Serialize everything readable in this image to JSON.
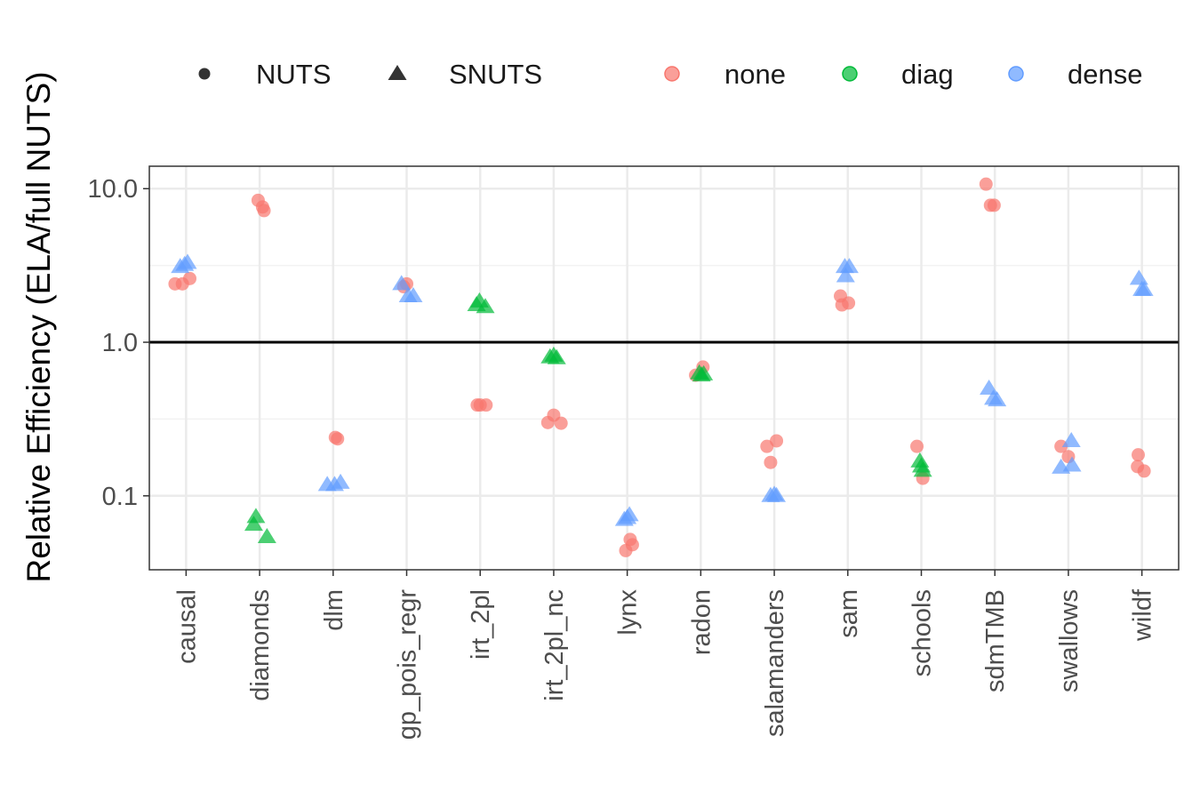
{
  "chart_data": {
    "type": "scatter",
    "title": "",
    "xlabel": "",
    "ylabel": "Relative Efficiency (ELA/full NUTS)",
    "y_scale": "log10",
    "ylim": [
      0.033,
      14
    ],
    "y_ticks": [
      {
        "value": 0.1,
        "label": "0.1"
      },
      {
        "value": 1.0,
        "label": "1.0"
      },
      {
        "value": 10.0,
        "label": "10.0"
      }
    ],
    "reference_line": 1.0,
    "grid": true,
    "legend_position": "top",
    "shape_legend": [
      {
        "key": "NUTS",
        "label": "NUTS",
        "shape": "circle"
      },
      {
        "key": "SNUTS",
        "label": "SNUTS",
        "shape": "triangle"
      }
    ],
    "color_legend": [
      {
        "key": "none",
        "label": "none",
        "color": "#F8766D"
      },
      {
        "key": "diag",
        "label": "diag",
        "color": "#00BA38"
      },
      {
        "key": "dense",
        "label": "dense",
        "color": "#619CFF"
      }
    ],
    "categories": [
      "causal",
      "diamonds",
      "dlm",
      "gp_pois_regr",
      "irt_2pl",
      "irt_2pl_nc",
      "lynx",
      "radon",
      "salamanders",
      "sam",
      "schools",
      "sdmTMB",
      "swallows",
      "wildf"
    ],
    "points": [
      {
        "category": "causal",
        "x_jitter": -0.15,
        "y": 2.4,
        "method": "NUTS",
        "metric": "none"
      },
      {
        "category": "causal",
        "x_jitter": -0.05,
        "y": 2.4,
        "method": "NUTS",
        "metric": "none"
      },
      {
        "category": "causal",
        "x_jitter": 0.05,
        "y": 2.6,
        "method": "NUTS",
        "metric": "none"
      },
      {
        "category": "causal",
        "x_jitter": -0.08,
        "y": 3.1,
        "method": "SNUTS",
        "metric": "dense"
      },
      {
        "category": "causal",
        "x_jitter": -0.02,
        "y": 3.2,
        "method": "SNUTS",
        "metric": "dense"
      },
      {
        "category": "causal",
        "x_jitter": 0.02,
        "y": 3.3,
        "method": "SNUTS",
        "metric": "dense"
      },
      {
        "category": "diamonds",
        "x_jitter": -0.02,
        "y": 8.4,
        "method": "NUTS",
        "metric": "none"
      },
      {
        "category": "diamonds",
        "x_jitter": 0.04,
        "y": 7.6,
        "method": "NUTS",
        "metric": "none"
      },
      {
        "category": "diamonds",
        "x_jitter": 0.06,
        "y": 7.2,
        "method": "NUTS",
        "metric": "none"
      },
      {
        "category": "diamonds",
        "x_jitter": -0.08,
        "y": 0.065,
        "method": "SNUTS",
        "metric": "diag"
      },
      {
        "category": "diamonds",
        "x_jitter": -0.05,
        "y": 0.073,
        "method": "SNUTS",
        "metric": "diag"
      },
      {
        "category": "diamonds",
        "x_jitter": 0.1,
        "y": 0.054,
        "method": "SNUTS",
        "metric": "diag"
      },
      {
        "category": "dlm",
        "x_jitter": 0.03,
        "y": 0.24,
        "method": "NUTS",
        "metric": "none"
      },
      {
        "category": "dlm",
        "x_jitter": 0.06,
        "y": 0.235,
        "method": "NUTS",
        "metric": "none"
      },
      {
        "category": "dlm",
        "x_jitter": -0.08,
        "y": 0.118,
        "method": "SNUTS",
        "metric": "dense"
      },
      {
        "category": "dlm",
        "x_jitter": 0.02,
        "y": 0.118,
        "method": "SNUTS",
        "metric": "dense"
      },
      {
        "category": "dlm",
        "x_jitter": 0.1,
        "y": 0.122,
        "method": "SNUTS",
        "metric": "dense"
      },
      {
        "category": "gp_pois_regr",
        "x_jitter": -0.04,
        "y": 2.3,
        "method": "NUTS",
        "metric": "none"
      },
      {
        "category": "gp_pois_regr",
        "x_jitter": 0.0,
        "y": 2.4,
        "method": "NUTS",
        "metric": "none"
      },
      {
        "category": "gp_pois_regr",
        "x_jitter": -0.07,
        "y": 2.4,
        "method": "SNUTS",
        "metric": "dense"
      },
      {
        "category": "gp_pois_regr",
        "x_jitter": 0.02,
        "y": 2.0,
        "method": "SNUTS",
        "metric": "dense"
      },
      {
        "category": "gp_pois_regr",
        "x_jitter": 0.09,
        "y": 2.0,
        "method": "SNUTS",
        "metric": "dense"
      },
      {
        "category": "irt_2pl",
        "x_jitter": -0.04,
        "y": 0.39,
        "method": "NUTS",
        "metric": "none"
      },
      {
        "category": "irt_2pl",
        "x_jitter": 0.0,
        "y": 0.39,
        "method": "NUTS",
        "metric": "none"
      },
      {
        "category": "irt_2pl",
        "x_jitter": 0.08,
        "y": 0.39,
        "method": "NUTS",
        "metric": "none"
      },
      {
        "category": "irt_2pl",
        "x_jitter": -0.05,
        "y": 1.75,
        "method": "SNUTS",
        "metric": "diag"
      },
      {
        "category": "irt_2pl",
        "x_jitter": -0.01,
        "y": 1.85,
        "method": "SNUTS",
        "metric": "diag"
      },
      {
        "category": "irt_2pl",
        "x_jitter": 0.07,
        "y": 1.7,
        "method": "SNUTS",
        "metric": "diag"
      },
      {
        "category": "irt_2pl_nc",
        "x_jitter": -0.08,
        "y": 0.3,
        "method": "NUTS",
        "metric": "none"
      },
      {
        "category": "irt_2pl_nc",
        "x_jitter": 0.0,
        "y": 0.335,
        "method": "NUTS",
        "metric": "none"
      },
      {
        "category": "irt_2pl_nc",
        "x_jitter": 0.1,
        "y": 0.297,
        "method": "NUTS",
        "metric": "none"
      },
      {
        "category": "irt_2pl_nc",
        "x_jitter": -0.05,
        "y": 0.8,
        "method": "SNUTS",
        "metric": "diag"
      },
      {
        "category": "irt_2pl_nc",
        "x_jitter": 0.0,
        "y": 0.82,
        "method": "SNUTS",
        "metric": "diag"
      },
      {
        "category": "irt_2pl_nc",
        "x_jitter": 0.04,
        "y": 0.79,
        "method": "SNUTS",
        "metric": "diag"
      },
      {
        "category": "lynx",
        "x_jitter": -0.02,
        "y": 0.044,
        "method": "NUTS",
        "metric": "none"
      },
      {
        "category": "lynx",
        "x_jitter": 0.04,
        "y": 0.052,
        "method": "NUTS",
        "metric": "none"
      },
      {
        "category": "lynx",
        "x_jitter": 0.07,
        "y": 0.048,
        "method": "NUTS",
        "metric": "none"
      },
      {
        "category": "lynx",
        "x_jitter": -0.04,
        "y": 0.07,
        "method": "SNUTS",
        "metric": "dense"
      },
      {
        "category": "lynx",
        "x_jitter": 0.0,
        "y": 0.072,
        "method": "SNUTS",
        "metric": "dense"
      },
      {
        "category": "lynx",
        "x_jitter": 0.03,
        "y": 0.075,
        "method": "SNUTS",
        "metric": "dense"
      },
      {
        "category": "radon",
        "x_jitter": -0.07,
        "y": 0.61,
        "method": "NUTS",
        "metric": "none"
      },
      {
        "category": "radon",
        "x_jitter": 0.03,
        "y": 0.69,
        "method": "NUTS",
        "metric": "none"
      },
      {
        "category": "radon",
        "x_jitter": -0.02,
        "y": 0.63,
        "method": "SNUTS",
        "metric": "diag"
      },
      {
        "category": "radon",
        "x_jitter": 0.01,
        "y": 0.61,
        "method": "SNUTS",
        "metric": "diag"
      },
      {
        "category": "radon",
        "x_jitter": 0.04,
        "y": 0.62,
        "method": "SNUTS",
        "metric": "diag"
      },
      {
        "category": "salamanders",
        "x_jitter": -0.1,
        "y": 0.21,
        "method": "NUTS",
        "metric": "none"
      },
      {
        "category": "salamanders",
        "x_jitter": -0.05,
        "y": 0.165,
        "method": "NUTS",
        "metric": "none"
      },
      {
        "category": "salamanders",
        "x_jitter": 0.03,
        "y": 0.228,
        "method": "NUTS",
        "metric": "none"
      },
      {
        "category": "salamanders",
        "x_jitter": -0.05,
        "y": 0.1,
        "method": "SNUTS",
        "metric": "dense"
      },
      {
        "category": "salamanders",
        "x_jitter": 0.0,
        "y": 0.102,
        "method": "SNUTS",
        "metric": "dense"
      },
      {
        "category": "salamanders",
        "x_jitter": 0.03,
        "y": 0.1,
        "method": "SNUTS",
        "metric": "dense"
      },
      {
        "category": "sam",
        "x_jitter": -0.1,
        "y": 2.0,
        "method": "NUTS",
        "metric": "none"
      },
      {
        "category": "sam",
        "x_jitter": -0.08,
        "y": 1.75,
        "method": "NUTS",
        "metric": "none"
      },
      {
        "category": "sam",
        "x_jitter": 0.01,
        "y": 1.8,
        "method": "NUTS",
        "metric": "none"
      },
      {
        "category": "sam",
        "x_jitter": -0.03,
        "y": 2.7,
        "method": "SNUTS",
        "metric": "dense"
      },
      {
        "category": "sam",
        "x_jitter": -0.04,
        "y": 3.1,
        "method": "SNUTS",
        "metric": "dense"
      },
      {
        "category": "sam",
        "x_jitter": 0.02,
        "y": 3.1,
        "method": "SNUTS",
        "metric": "dense"
      },
      {
        "category": "schools",
        "x_jitter": -0.06,
        "y": 0.21,
        "method": "NUTS",
        "metric": "none"
      },
      {
        "category": "schools",
        "x_jitter": 0.02,
        "y": 0.13,
        "method": "NUTS",
        "metric": "none"
      },
      {
        "category": "schools",
        "x_jitter": -0.02,
        "y": 0.168,
        "method": "SNUTS",
        "metric": "diag"
      },
      {
        "category": "schools",
        "x_jitter": 0.0,
        "y": 0.156,
        "method": "SNUTS",
        "metric": "diag"
      },
      {
        "category": "schools",
        "x_jitter": 0.02,
        "y": 0.146,
        "method": "SNUTS",
        "metric": "diag"
      },
      {
        "category": "sdmTMB",
        "x_jitter": -0.12,
        "y": 10.7,
        "method": "NUTS",
        "metric": "none"
      },
      {
        "category": "sdmTMB",
        "x_jitter": -0.06,
        "y": 7.8,
        "method": "NUTS",
        "metric": "none"
      },
      {
        "category": "sdmTMB",
        "x_jitter": -0.01,
        "y": 7.8,
        "method": "NUTS",
        "metric": "none"
      },
      {
        "category": "sdmTMB",
        "x_jitter": -0.08,
        "y": 0.5,
        "method": "SNUTS",
        "metric": "dense"
      },
      {
        "category": "sdmTMB",
        "x_jitter": -0.02,
        "y": 0.43,
        "method": "SNUTS",
        "metric": "dense"
      },
      {
        "category": "sdmTMB",
        "x_jitter": 0.03,
        "y": 0.42,
        "method": "SNUTS",
        "metric": "dense"
      },
      {
        "category": "swallows",
        "x_jitter": -0.1,
        "y": 0.21,
        "method": "NUTS",
        "metric": "none"
      },
      {
        "category": "swallows",
        "x_jitter": 0.0,
        "y": 0.18,
        "method": "NUTS",
        "metric": "none"
      },
      {
        "category": "swallows",
        "x_jitter": -0.1,
        "y": 0.153,
        "method": "SNUTS",
        "metric": "dense"
      },
      {
        "category": "swallows",
        "x_jitter": 0.05,
        "y": 0.158,
        "method": "SNUTS",
        "metric": "dense"
      },
      {
        "category": "swallows",
        "x_jitter": 0.04,
        "y": 0.228,
        "method": "SNUTS",
        "metric": "dense"
      },
      {
        "category": "wildf",
        "x_jitter": -0.05,
        "y": 0.185,
        "method": "NUTS",
        "metric": "none"
      },
      {
        "category": "wildf",
        "x_jitter": -0.06,
        "y": 0.155,
        "method": "NUTS",
        "metric": "none"
      },
      {
        "category": "wildf",
        "x_jitter": 0.03,
        "y": 0.145,
        "method": "NUTS",
        "metric": "none"
      },
      {
        "category": "wildf",
        "x_jitter": -0.04,
        "y": 2.6,
        "method": "SNUTS",
        "metric": "dense"
      },
      {
        "category": "wildf",
        "x_jitter": 0.0,
        "y": 2.2,
        "method": "SNUTS",
        "metric": "dense"
      },
      {
        "category": "wildf",
        "x_jitter": 0.03,
        "y": 2.2,
        "method": "SNUTS",
        "metric": "dense"
      }
    ]
  }
}
